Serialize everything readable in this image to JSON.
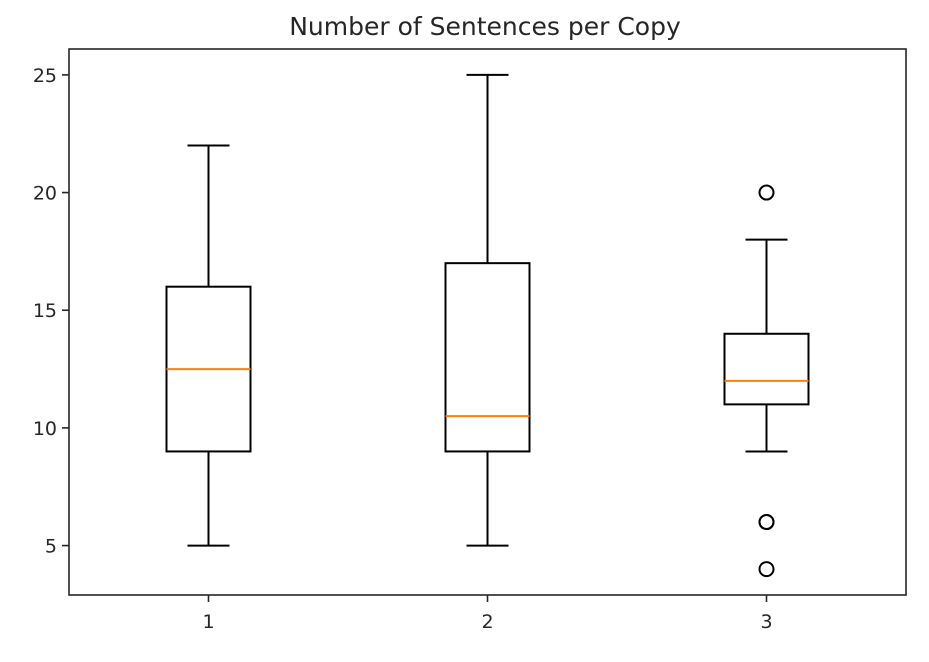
{
  "chart_data": {
    "type": "boxplot",
    "title": "Number of Sentences per Copy",
    "xlabel": "",
    "ylabel": "",
    "categories": [
      "1",
      "2",
      "3"
    ],
    "ylim": [
      2.9,
      26.1
    ],
    "y_ticks": [
      5,
      10,
      15,
      20,
      25
    ],
    "y_tick_labels": [
      "5",
      "10",
      "15",
      "20",
      "25"
    ],
    "grid": false,
    "boxes": [
      {
        "category": "1",
        "whisker_low": 5,
        "q1": 9,
        "median": 12.5,
        "q3": 16,
        "whisker_high": 22,
        "outliers": []
      },
      {
        "category": "2",
        "whisker_low": 5,
        "q1": 9,
        "median": 10.5,
        "q3": 17,
        "whisker_high": 25,
        "outliers": []
      },
      {
        "category": "3",
        "whisker_low": 9,
        "q1": 11,
        "median": 12,
        "q3": 14,
        "whisker_high": 18,
        "outliers": [
          20,
          6,
          6,
          4
        ]
      }
    ],
    "colors": {
      "box": "#000000",
      "median": "#ff7f0e",
      "axes": "#262626",
      "outlier_edge": "#000000"
    }
  }
}
